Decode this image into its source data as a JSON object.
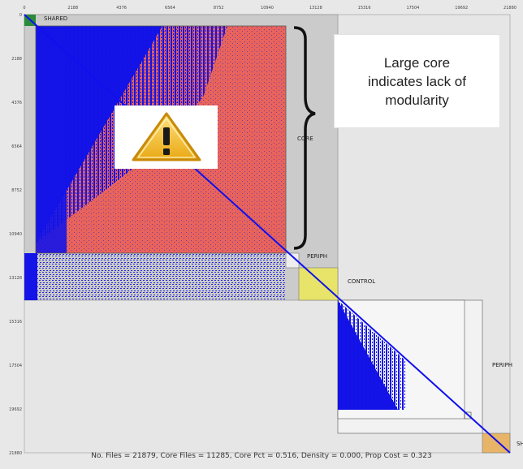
{
  "axis": {
    "ticks": [
      "0",
      "2188",
      "4376",
      "6564",
      "8752",
      "10940",
      "13128",
      "15316",
      "17504",
      "19692",
      "21880"
    ]
  },
  "labels": {
    "shared": "SHARED",
    "core": "CORE",
    "periph_top": "PERIPH",
    "control": "CONTROL",
    "periph_right": "PERIPH",
    "shared_bottom": "SH"
  },
  "callout": {
    "line1": "Large core",
    "line2": "indicates lack of",
    "line3": "modularity"
  },
  "footer": "No. Files = 21879, Core Files = 11285, Core Pct = 0.516, Density = 0.000, Prop Cost = 0.323",
  "colors": {
    "dependency": "#1010ee",
    "core_fill": "#e86a60",
    "block_fill": "#c9c9c9",
    "control_fill": "#e8e46a",
    "shared_fill": "#2a8a3a",
    "shared_bottom_fill": "#e8b468",
    "warning": "#f2c12e"
  },
  "icons": [
    "warning-icon",
    "brace-icon"
  ]
}
